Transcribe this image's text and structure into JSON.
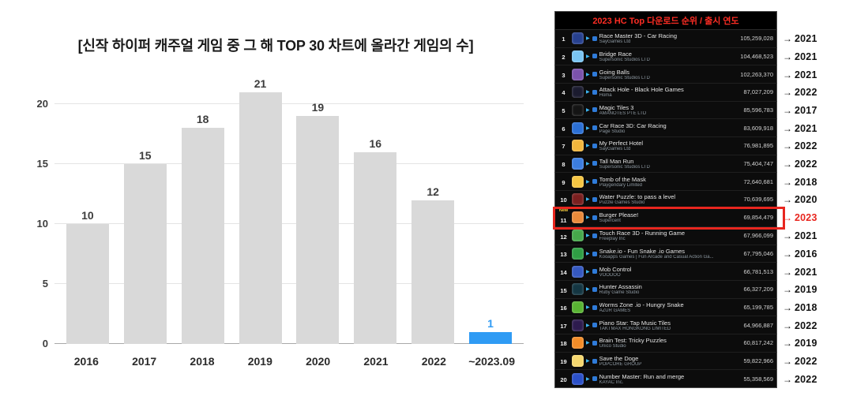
{
  "chart_data": {
    "type": "bar",
    "title": "[신작 하이퍼 캐주얼 게임 중 그 해 TOP 30 차트에 올라간 게임의 수]",
    "categories": [
      "2016",
      "2017",
      "2018",
      "2019",
      "2020",
      "2021",
      "2022",
      "~2023.09"
    ],
    "values": [
      10,
      15,
      18,
      21,
      19,
      16,
      12,
      1
    ],
    "xlabel": "",
    "ylabel": "",
    "ylim": [
      0,
      22.5
    ],
    "yticks": [
      0,
      5,
      10,
      15,
      20
    ],
    "grid": "horizontal",
    "legend": "none",
    "bar_color": "#d9d9d9",
    "highlight_index": 7,
    "highlight_color": "#2f9bf4",
    "value_label_color": "#3d3d3d"
  },
  "ranking_panel": {
    "title": "2023 HC Top 다운로드 순위 / 출시 연도",
    "title_color": "#ff2d24",
    "background": "#0c0c0c",
    "highlight_box_color": "#e8261f",
    "year_arrow": "→",
    "rows": [
      {
        "rank": "1",
        "name": "Race Master 3D - Car Racing",
        "publisher": "SayGames Ltd",
        "downloads": "105,259,028",
        "year": "2021",
        "icon_color": "#27408f"
      },
      {
        "rank": "2",
        "name": "Bridge Race",
        "publisher": "Supersonic Studios LTD",
        "downloads": "104,468,523",
        "year": "2021",
        "icon_color": "#79c4f2"
      },
      {
        "rank": "3",
        "name": "Going Balls",
        "publisher": "Supersonic Studios LTD",
        "downloads": "102,263,370",
        "year": "2021",
        "icon_color": "#7b52ab"
      },
      {
        "rank": "4",
        "name": "Attack Hole - Black Hole Games",
        "publisher": "Homa",
        "downloads": "87,027,209",
        "year": "2022",
        "icon_color": "#1b1b2f"
      },
      {
        "rank": "5",
        "name": "Magic Tiles 3",
        "publisher": "AMANOTES PTE LTD",
        "downloads": "85,596,783",
        "year": "2017",
        "icon_color": "#141414"
      },
      {
        "rank": "6",
        "name": "Car Race 3D: Car Racing",
        "publisher": "Page Studio",
        "downloads": "83,609,918",
        "year": "2021",
        "icon_color": "#2b6fd4"
      },
      {
        "rank": "7",
        "name": "My Perfect Hotel",
        "publisher": "SayGames Ltd",
        "downloads": "76,981,895",
        "year": "2022",
        "icon_color": "#f2b63c"
      },
      {
        "rank": "8",
        "name": "Tall Man Run",
        "publisher": "Supersonic Studios LTD",
        "downloads": "75,404,747",
        "year": "2022",
        "icon_color": "#3b7de0"
      },
      {
        "rank": "9",
        "name": "Tomb of the Mask",
        "publisher": "Playgendary Limited",
        "downloads": "72,640,681",
        "year": "2018",
        "icon_color": "#f5c542"
      },
      {
        "rank": "10",
        "name": "Water Puzzle: to pass a level",
        "publisher": "Puzzle Games Studio",
        "downloads": "70,639,695",
        "year": "2020",
        "icon_color": "#7a1f1f"
      },
      {
        "rank": "11",
        "name": "Burger Please!",
        "publisher": "Supercent",
        "downloads": "69,854,479",
        "year": "2023",
        "icon_color": "#e8893a",
        "highlighted": true,
        "badge": "New"
      },
      {
        "rank": "12",
        "name": "Touch Race 3D - Running Game",
        "publisher": "Freeplay Inc",
        "downloads": "67,966,099",
        "year": "2021",
        "icon_color": "#46a84b"
      },
      {
        "rank": "13",
        "name": "Snake.io - Fun Snake .io Games",
        "publisher": "Kooapps Games | Fun Arcade and Casual Action Ga...",
        "downloads": "67,795,046",
        "year": "2016",
        "icon_color": "#2f9e44"
      },
      {
        "rank": "14",
        "name": "Mob Control",
        "publisher": "VOODOO",
        "downloads": "66,781,513",
        "year": "2021",
        "icon_color": "#3558c0"
      },
      {
        "rank": "15",
        "name": "Hunter Assassin",
        "publisher": "Ruby Game Studio",
        "downloads": "66,327,209",
        "year": "2019",
        "icon_color": "#143642"
      },
      {
        "rank": "16",
        "name": "Worms Zone .io - Hungry Snake",
        "publisher": "AZUR GAMES",
        "downloads": "65,199,785",
        "year": "2018",
        "icon_color": "#58b332"
      },
      {
        "rank": "17",
        "name": "Piano Star: Tap Music Tiles",
        "publisher": "TAKTMAX HONGKONG LIMITED",
        "downloads": "64,966,887",
        "year": "2022",
        "icon_color": "#2d1b4e"
      },
      {
        "rank": "18",
        "name": "Brain Test: Tricky Puzzles",
        "publisher": "Unico Studio",
        "downloads": "60,817,242",
        "year": "2019",
        "icon_color": "#f28c28"
      },
      {
        "rank": "19",
        "name": "Save the Doge",
        "publisher": "POPCORE GROUP",
        "downloads": "59,822,966",
        "year": "2022",
        "icon_color": "#f5d76e"
      },
      {
        "rank": "20",
        "name": "Number Master: Run and merge",
        "publisher": "KAYAC Inc.",
        "downloads": "55,358,569",
        "year": "2022",
        "icon_color": "#2b50c8"
      }
    ]
  }
}
